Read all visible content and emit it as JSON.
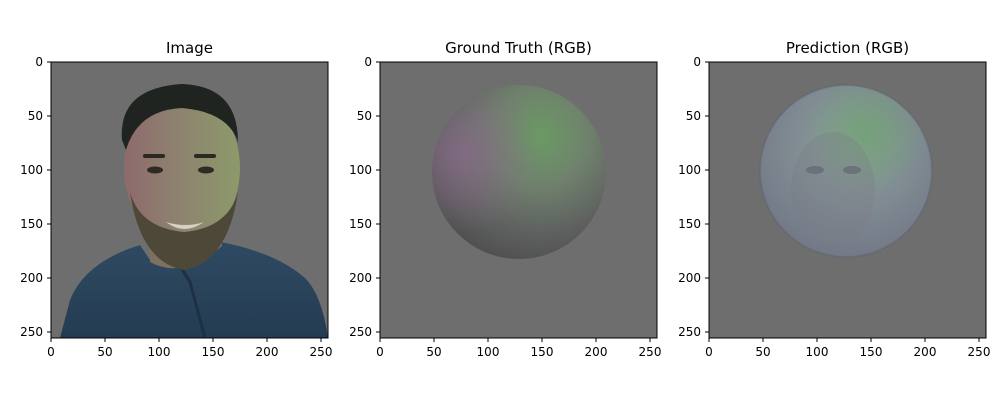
{
  "figure": {
    "panels": [
      {
        "title": "Image",
        "content": "portrait-photo"
      },
      {
        "title": "Ground Truth (RGB)",
        "content": "shaded-sphere"
      },
      {
        "title": "Prediction (RGB)",
        "content": "noisy-face-sphere"
      }
    ],
    "x_ticks": [
      "0",
      "50",
      "100",
      "150",
      "200",
      "250"
    ],
    "y_ticks": [
      "0",
      "50",
      "100",
      "150",
      "200",
      "250"
    ],
    "axis_range": [
      0,
      256
    ],
    "background_color": "#6e6e6e",
    "grid": false
  },
  "chart_data": [
    {
      "type": "image",
      "title": "Image",
      "xlim": [
        0,
        256
      ],
      "ylim": [
        256,
        0
      ],
      "xticks": [
        0,
        50,
        100,
        150,
        200,
        250
      ],
      "yticks": [
        0,
        50,
        100,
        150,
        200,
        250
      ]
    },
    {
      "type": "image",
      "title": "Ground Truth (RGB)",
      "xlim": [
        0,
        256
      ],
      "ylim": [
        256,
        0
      ],
      "xticks": [
        0,
        50,
        100,
        150,
        200,
        250
      ],
      "yticks": [
        0,
        50,
        100,
        150,
        200,
        250
      ]
    },
    {
      "type": "image",
      "title": "Prediction (RGB)",
      "xlim": [
        0,
        256
      ],
      "ylim": [
        256,
        0
      ],
      "xticks": [
        0,
        50,
        100,
        150,
        200,
        250
      ],
      "yticks": [
        0,
        50,
        100,
        150,
        200,
        250
      ]
    }
  ]
}
